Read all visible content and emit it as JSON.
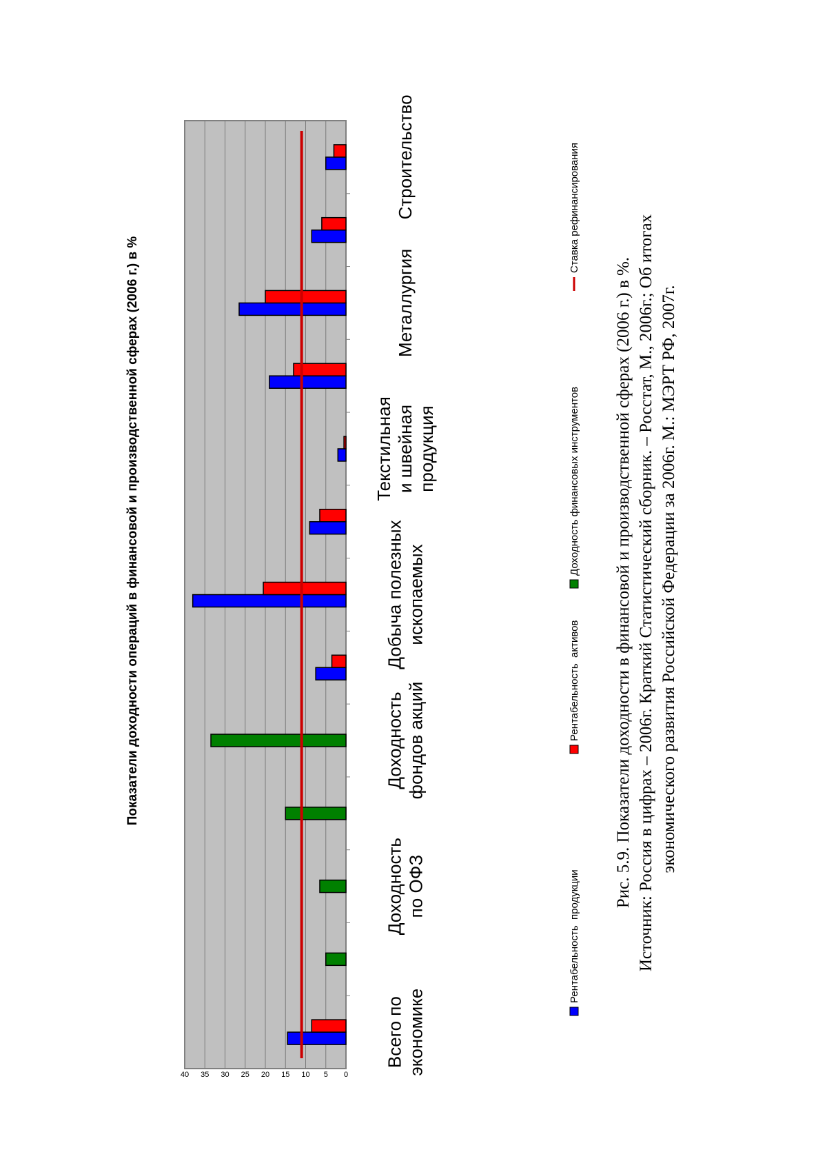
{
  "chart_data": {
    "type": "bar",
    "orientation": "horizontal",
    "title": "Показатели доходности  операций  в финансовой    и производственной сферах  (2006 г.) в %",
    "categories": [
      "Всего по экономике",
      "",
      "Доходность по ОФЗ",
      "",
      "Доходность фондов акций",
      "",
      "Добыча полезных ископаемых",
      "",
      "Текстильная и швейная продукция",
      "",
      "Металлургия",
      "",
      "Строительство"
    ],
    "category_lines": [
      [
        "Всего по",
        "экономике"
      ],
      [],
      [
        "Доходность",
        "по ОФЗ"
      ],
      [],
      [
        "Доходность",
        "фондов акций"
      ],
      [],
      [
        "Добыча полезных",
        "ископаемых"
      ],
      [],
      [
        "Текстильная",
        "и швейная",
        "продукция"
      ],
      [],
      [
        "Металлургия"
      ],
      [],
      [
        "Строительство"
      ]
    ],
    "series": [
      {
        "name": "Рентабельность  продукции",
        "color": "#0000ff",
        "values": [
          14.5,
          null,
          null,
          null,
          null,
          7.5,
          38,
          9,
          2,
          19,
          26.5,
          8.5,
          5
        ]
      },
      {
        "name": "Рентабельность  активов",
        "color": "#ff0000",
        "values": [
          8.5,
          null,
          null,
          null,
          null,
          3.5,
          20.5,
          6.5,
          0.5,
          13,
          20,
          6,
          3
        ]
      },
      {
        "name": "Доходность финансовых инструментов",
        "color": "#008000",
        "values": [
          null,
          5,
          6.5,
          15,
          33.5,
          null,
          null,
          null,
          null,
          null,
          null,
          null,
          null
        ]
      }
    ],
    "reference_line": {
      "name": "Ставка рефинансирования",
      "value": 11,
      "color": "#cc0000"
    },
    "ylim": [
      0,
      40
    ],
    "yticks": [
      "40",
      "35",
      "30",
      "25",
      "20",
      "15",
      "10",
      "5",
      "0"
    ],
    "grid": true,
    "legend_position": "bottom",
    "plot_background": "#c0c0c0"
  },
  "caption": {
    "line1": "Рис. 5.9. Показатели доходности в финансовой и производственной сферах (2006 г.) в %.",
    "line2": "Источник: Россия в цифрах – 2006г. Краткий Статистический сборник. – Росстат, М., 2006г.; Об итогах",
    "line3": "экономического развития Российской Федерации за 2006г. М.: МЭРТ РФ, 2007г."
  }
}
